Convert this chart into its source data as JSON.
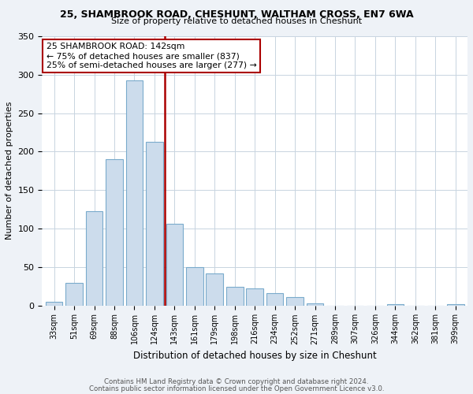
{
  "title": "25, SHAMBROOK ROAD, CHESHUNT, WALTHAM CROSS, EN7 6WA",
  "subtitle": "Size of property relative to detached houses in Cheshunt",
  "xlabel": "Distribution of detached houses by size in Cheshunt",
  "ylabel": "Number of detached properties",
  "bin_labels": [
    "33sqm",
    "51sqm",
    "69sqm",
    "88sqm",
    "106sqm",
    "124sqm",
    "143sqm",
    "161sqm",
    "179sqm",
    "198sqm",
    "216sqm",
    "234sqm",
    "252sqm",
    "271sqm",
    "289sqm",
    "307sqm",
    "326sqm",
    "344sqm",
    "362sqm",
    "381sqm",
    "399sqm"
  ],
  "bar_values": [
    5,
    29,
    122,
    190,
    293,
    213,
    106,
    50,
    42,
    24,
    22,
    16,
    11,
    3,
    0,
    0,
    0,
    2,
    0,
    0,
    2
  ],
  "bar_color": "#ccdcec",
  "bar_edge_color": "#7aabcc",
  "marker_label": "25 SHAMBROOK ROAD: 142sqm",
  "marker_line1": "← 75% of detached houses are smaller (837)",
  "marker_line2": "25% of semi-detached houses are larger (277) →",
  "marker_color": "#aa0000",
  "ylim": [
    0,
    350
  ],
  "yticks": [
    0,
    50,
    100,
    150,
    200,
    250,
    300,
    350
  ],
  "footnote1": "Contains HM Land Registry data © Crown copyright and database right 2024.",
  "footnote2": "Contains public sector information licensed under the Open Government Licence v3.0.",
  "bg_color": "#eef2f7",
  "plot_bg_color": "#ffffff",
  "grid_color": "#c8d4e0"
}
